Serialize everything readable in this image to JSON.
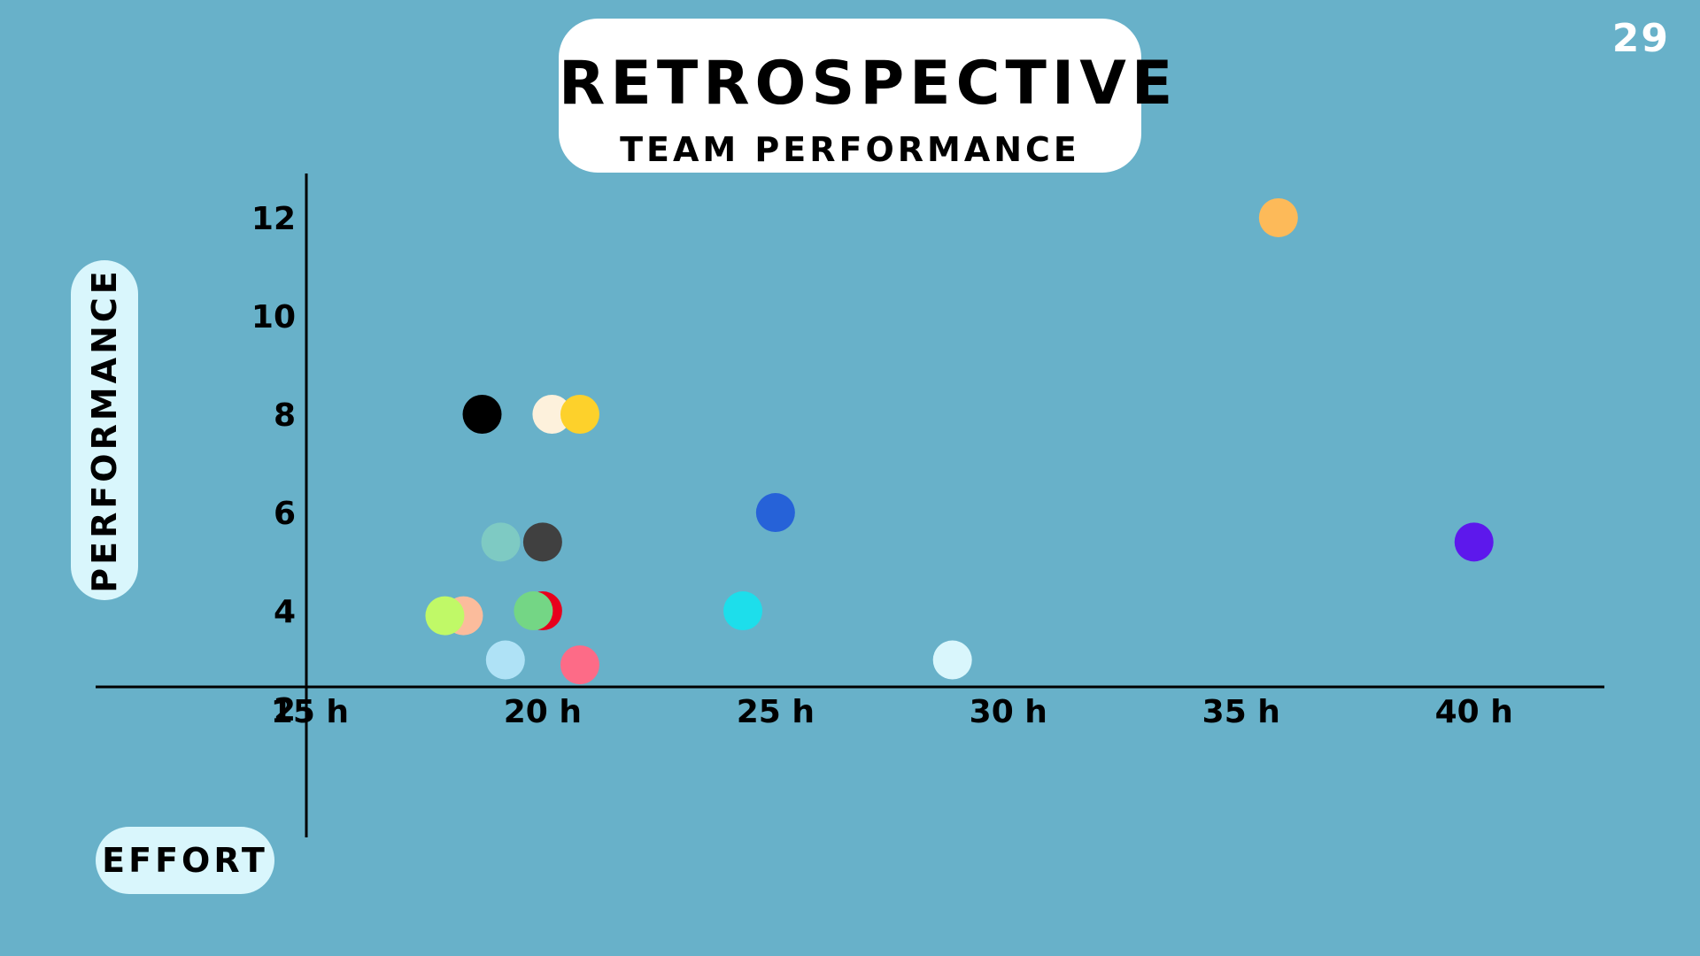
{
  "header": {
    "title": "RETROSPECTIVE",
    "subtitle": "TEAM PERFORMANCE"
  },
  "page_number": "29",
  "chart_data": {
    "type": "scatter",
    "title": "RETROSPECTIVE",
    "subtitle": "TEAM PERFORMANCE",
    "xlabel": "EFFORT",
    "ylabel": "PERFORMANCE",
    "x_ticks": [
      {
        "value": 15,
        "label": "15 h"
      },
      {
        "value": 20,
        "label": "20 h"
      },
      {
        "value": 25,
        "label": "25 h"
      },
      {
        "value": 30,
        "label": "30 h"
      },
      {
        "value": 35,
        "label": "35 h"
      },
      {
        "value": 40,
        "label": "40 h"
      }
    ],
    "y_ticks": [
      {
        "value": 2,
        "label": "2"
      },
      {
        "value": 4,
        "label": "4"
      },
      {
        "value": 6,
        "label": "6"
      },
      {
        "value": 8,
        "label": "8"
      },
      {
        "value": 10,
        "label": "10"
      },
      {
        "value": 12,
        "label": "12"
      }
    ],
    "xlim": [
      10.4,
      42.8
    ],
    "ylim": [
      -1.8,
      12.9
    ],
    "grid": false,
    "legend": "none",
    "points": [
      {
        "x": 18.7,
        "y": 8.0,
        "color": "#000000"
      },
      {
        "x": 20.2,
        "y": 8.0,
        "color": "#fdf1dc"
      },
      {
        "x": 20.8,
        "y": 8.0,
        "color": "#fdd12b"
      },
      {
        "x": 19.1,
        "y": 5.4,
        "color": "#7ecac3"
      },
      {
        "x": 20.0,
        "y": 5.4,
        "color": "#404040"
      },
      {
        "x": 20.0,
        "y": 4.0,
        "color": "#e8001c"
      },
      {
        "x": 19.8,
        "y": 4.0,
        "color": "#74d685"
      },
      {
        "x": 18.3,
        "y": 3.9,
        "color": "#fbbc9c"
      },
      {
        "x": 17.9,
        "y": 3.9,
        "color": "#c0f967"
      },
      {
        "x": 19.2,
        "y": 3.0,
        "color": "#afe2f6"
      },
      {
        "x": 20.8,
        "y": 2.9,
        "color": "#fd6b87"
      },
      {
        "x": 25.0,
        "y": 6.0,
        "color": "#2662d8"
      },
      {
        "x": 24.3,
        "y": 4.0,
        "color": "#1ddeeb"
      },
      {
        "x": 28.8,
        "y": 3.0,
        "color": "#d9f6fc"
      },
      {
        "x": 35.8,
        "y": 12.0,
        "color": "#fdba59"
      },
      {
        "x": 40.0,
        "y": 5.4,
        "color": "#5d18ec"
      }
    ]
  }
}
